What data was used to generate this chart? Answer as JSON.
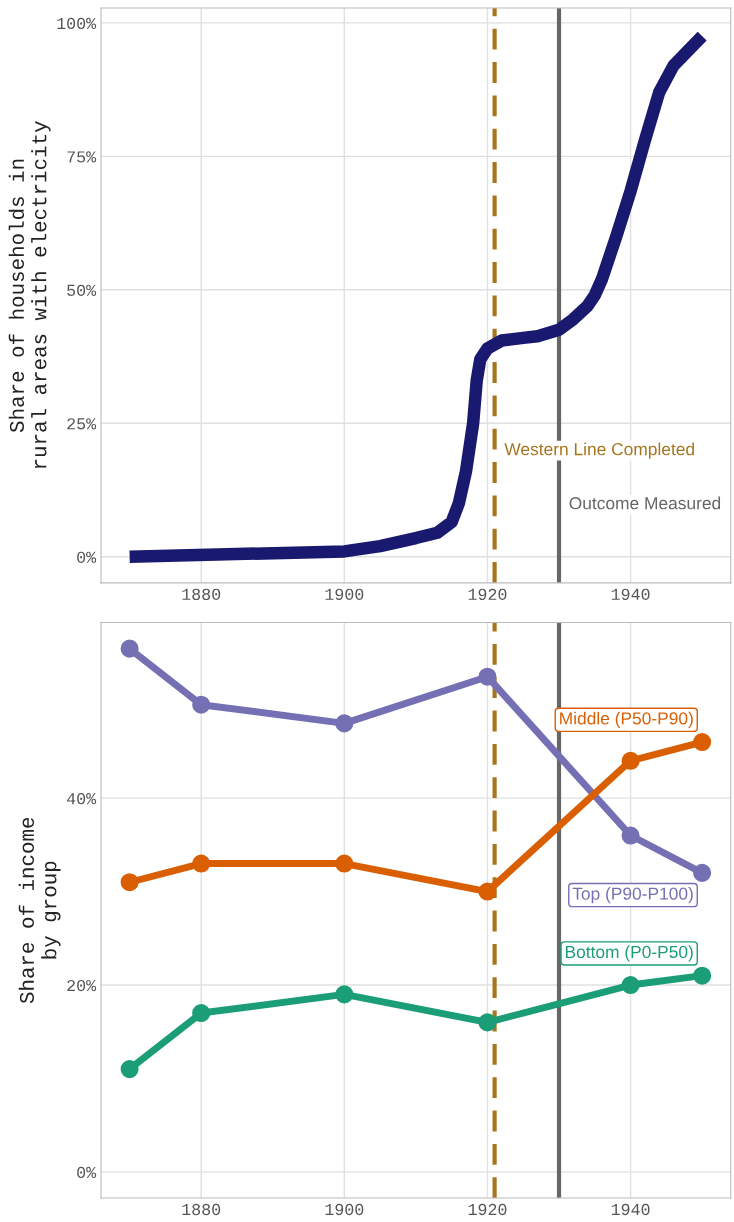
{
  "chart_data": [
    {
      "type": "line",
      "ylabel": "Share of households in\nrural areas with electricity",
      "grid": true,
      "legend": false,
      "marker": "none",
      "line_style": "solid",
      "xlim": [
        1866,
        1954
      ],
      "xticks": [
        1880,
        1900,
        1920,
        1940
      ],
      "ylim": [
        -4.9,
        102.8
      ],
      "yticks": [
        {
          "value": 0,
          "label": "0%"
        },
        {
          "value": 25,
          "label": "25%"
        },
        {
          "value": 50,
          "label": "50%"
        },
        {
          "value": 75,
          "label": "75%"
        },
        {
          "value": 100,
          "label": "100%"
        }
      ],
      "series": [
        {
          "color": "#191970",
          "x": [
            1870,
            1900,
            1905,
            1910,
            1913,
            1915,
            1916,
            1917,
            1918,
            1918.5,
            1919,
            1920,
            1922,
            1925,
            1927,
            1930,
            1932,
            1934,
            1935,
            1936,
            1938,
            1940,
            1942,
            1944,
            1946,
            1950
          ],
          "values": [
            0,
            1,
            2,
            3.5,
            4.5,
            6.5,
            10,
            16,
            25,
            33,
            37,
            39,
            40.5,
            41,
            41.3,
            42.5,
            44.5,
            47,
            49,
            52,
            60,
            68.5,
            78,
            87,
            92,
            97.5
          ]
        }
      ],
      "ref_lines": [
        {
          "axis": "x",
          "value": 1921,
          "label": "Western Line Completed",
          "color": "#a6761d",
          "line_style": "dashed"
        },
        {
          "axis": "x",
          "value": 1930,
          "label": "Outcome Measured",
          "color": "#666666",
          "line_style": "solid"
        }
      ]
    },
    {
      "type": "line",
      "ylabel": "Share of income\nby group",
      "grid": true,
      "legend": false,
      "marker": "circle",
      "line_style": "solid",
      "xlim": [
        1866,
        1954
      ],
      "xticks": [
        1880,
        1900,
        1920,
        1940
      ],
      "ylim": [
        -2.8,
        58.8
      ],
      "yticks": [
        {
          "value": 0,
          "label": "0%"
        },
        {
          "value": 20,
          "label": "20%"
        },
        {
          "value": 40,
          "label": "40%"
        }
      ],
      "x": [
        1870,
        1880,
        1900,
        1920,
        1940,
        1950
      ],
      "series": [
        {
          "name": "Top (P90-P100)",
          "color": "#7570b3",
          "values": [
            56,
            50,
            48,
            53,
            36,
            32
          ]
        },
        {
          "name": "Middle (P50-P90)",
          "color": "#d95f02",
          "values": [
            31,
            33,
            33,
            30,
            44,
            46
          ]
        },
        {
          "name": "Bottom (P0-P50)",
          "color": "#1b9e77",
          "values": [
            11,
            17,
            19,
            16,
            20,
            21
          ]
        }
      ],
      "ref_lines": [
        {
          "axis": "x",
          "value": 1921,
          "color": "#a6761d",
          "line_style": "dashed"
        },
        {
          "axis": "x",
          "value": 1930,
          "color": "#666666",
          "line_style": "solid"
        }
      ]
    }
  ]
}
